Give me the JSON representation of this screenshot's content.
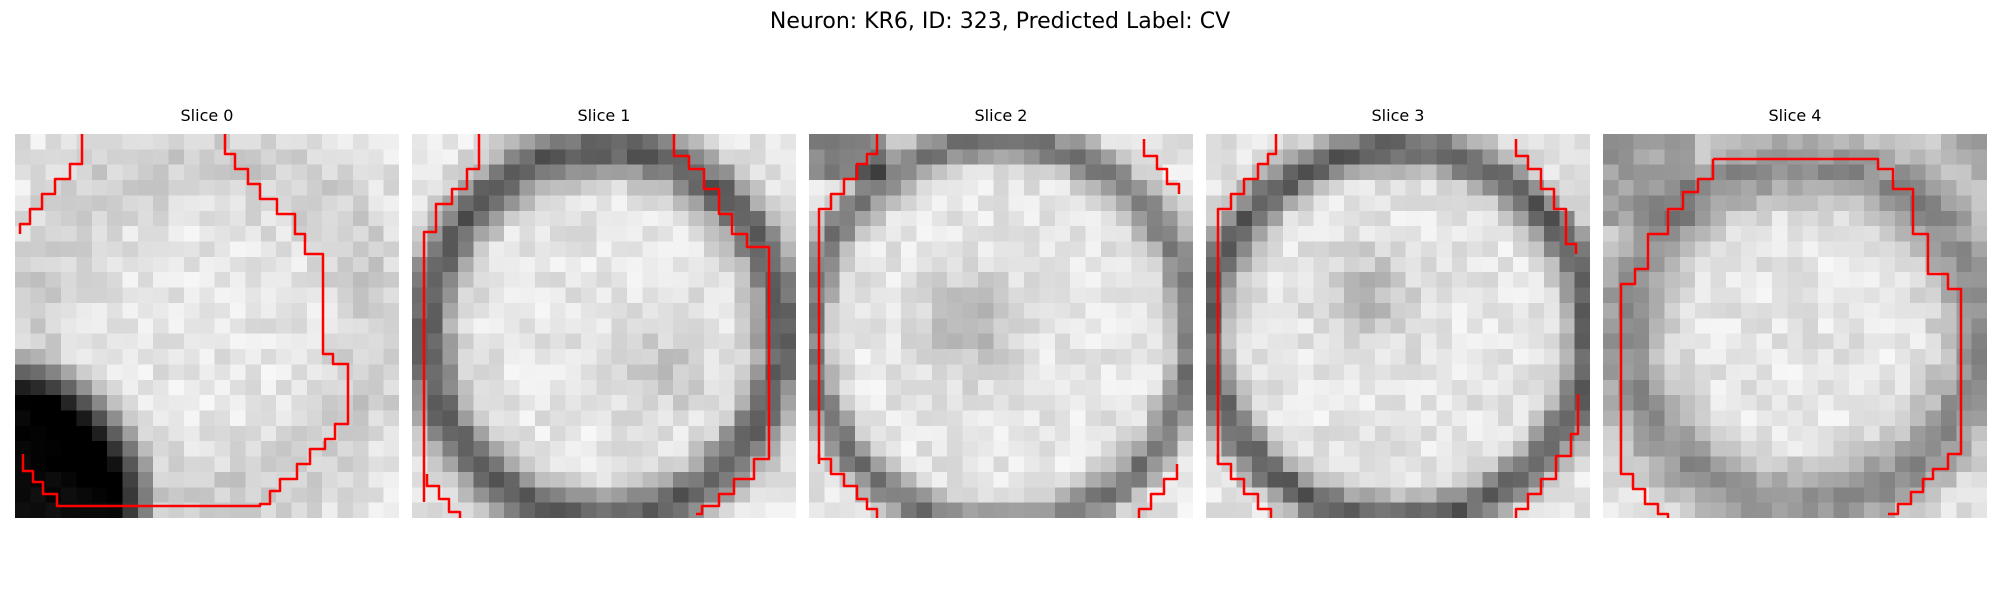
{
  "figure": {
    "title": "Neuron: KR6, ID: 323, Predicted Label: CV",
    "contour_color": "#ff0000"
  },
  "slices": [
    {
      "title": "Slice 0"
    },
    {
      "title": "Slice 1"
    },
    {
      "title": "Slice 2"
    },
    {
      "title": "Slice 3"
    },
    {
      "title": "Slice 4"
    }
  ]
}
